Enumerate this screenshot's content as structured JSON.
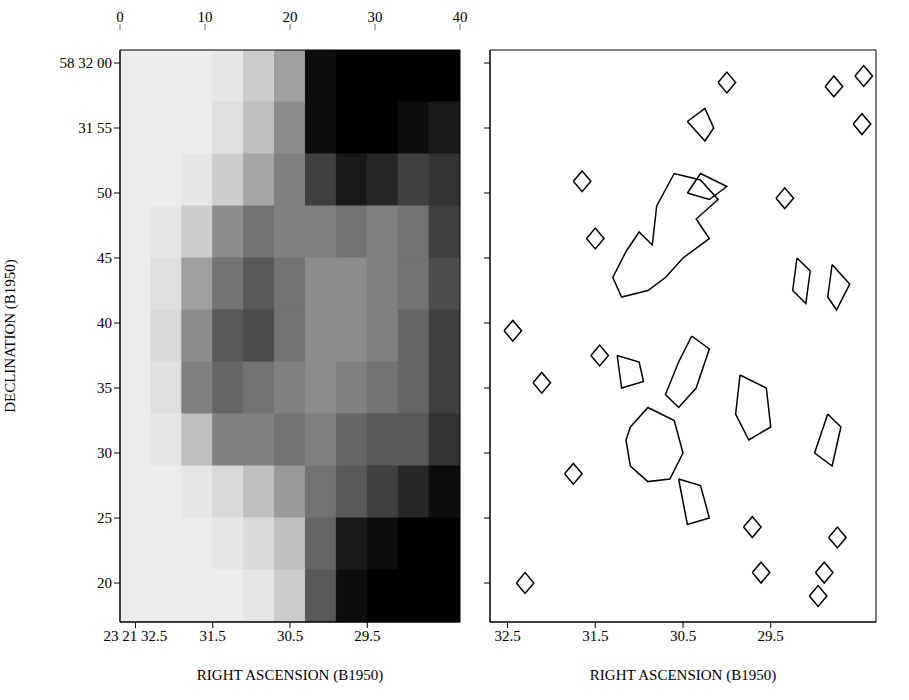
{
  "chart_data": [
    {
      "type": "heatmap",
      "xlabel": "RIGHT ASCENSION (B1950)",
      "ylabel": "DECLINATION (B1950)",
      "xlim": [
        32.7,
        28.3
      ],
      "ylim": [
        17,
        61
      ],
      "xticks": [
        {
          "value": 32.5,
          "label": "23 21 32.5"
        },
        31.5,
        30.5,
        29.5
      ],
      "yticks": [
        {
          "value": 60,
          "label": "58 32 00"
        },
        {
          "value": 55,
          "label": "31 55"
        },
        50,
        45,
        40,
        35,
        30,
        25,
        20
      ],
      "x_edges": [
        32.7,
        32.3,
        31.9,
        31.5,
        31.1,
        30.7,
        30.3,
        29.9,
        29.5,
        29.1,
        28.7,
        28.3
      ],
      "y_edges": [
        61,
        57,
        53,
        49,
        45,
        41,
        37,
        33,
        29,
        25,
        21,
        17
      ],
      "cells": [
        [
          3,
          3,
          3,
          4,
          8,
          15,
          38,
          40,
          40,
          40,
          40
        ],
        [
          3,
          3,
          3,
          5,
          10,
          18,
          38,
          40,
          40,
          38,
          36
        ],
        [
          3,
          3,
          4,
          8,
          14,
          20,
          30,
          36,
          34,
          30,
          32
        ],
        [
          3,
          4,
          8,
          18,
          22,
          20,
          20,
          22,
          20,
          22,
          30
        ],
        [
          3,
          5,
          15,
          22,
          26,
          22,
          18,
          18,
          20,
          22,
          28
        ],
        [
          3,
          6,
          18,
          26,
          28,
          22,
          18,
          18,
          20,
          24,
          30
        ],
        [
          3,
          5,
          20,
          24,
          22,
          20,
          18,
          20,
          22,
          24,
          30
        ],
        [
          3,
          4,
          10,
          20,
          20,
          22,
          20,
          24,
          26,
          26,
          32
        ],
        [
          3,
          3,
          4,
          6,
          10,
          16,
          22,
          26,
          30,
          34,
          38
        ],
        [
          3,
          3,
          3,
          4,
          6,
          10,
          24,
          36,
          38,
          40,
          40
        ],
        [
          3,
          3,
          3,
          3,
          4,
          8,
          26,
          38,
          40,
          40,
          40
        ]
      ],
      "colorbar": {
        "range": [
          0,
          40
        ],
        "ticks": [
          0,
          10,
          20,
          30,
          40
        ]
      }
    },
    {
      "type": "contour",
      "xlabel": "RIGHT ASCENSION (B1950)",
      "xlim": [
        32.7,
        28.3
      ],
      "ylim": [
        17,
        61
      ],
      "xticks": [
        32.5,
        31.5,
        30.5,
        29.5
      ],
      "yticks": [
        60,
        55,
        50,
        45,
        40,
        35,
        30,
        25,
        20
      ],
      "tick_labels": "x",
      "color": "#000000",
      "contours": [
        [
          [
            31.15,
            45.5
          ],
          [
            31.0,
            47
          ],
          [
            30.85,
            46
          ],
          [
            30.8,
            49
          ],
          [
            30.6,
            51.5
          ],
          [
            30.3,
            51
          ],
          [
            30.1,
            49.5
          ],
          [
            30.35,
            48
          ],
          [
            30.2,
            46.5
          ],
          [
            30.5,
            45
          ],
          [
            30.7,
            43.5
          ],
          [
            30.9,
            42.5
          ],
          [
            31.2,
            42
          ],
          [
            31.3,
            43.5
          ],
          [
            31.15,
            45.5
          ]
        ],
        [
          [
            31.1,
            32
          ],
          [
            30.9,
            33.5
          ],
          [
            30.6,
            32.5
          ],
          [
            30.5,
            30
          ],
          [
            30.65,
            28
          ],
          [
            30.9,
            27.8
          ],
          [
            31.1,
            29
          ],
          [
            31.15,
            31
          ],
          [
            31.1,
            32
          ]
        ],
        [
          [
            30.4,
            39
          ],
          [
            30.2,
            38
          ],
          [
            30.35,
            35
          ],
          [
            30.55,
            33.5
          ],
          [
            30.7,
            34.5
          ],
          [
            30.55,
            37
          ],
          [
            30.4,
            39
          ]
        ],
        [
          [
            29.85,
            36
          ],
          [
            29.55,
            35
          ],
          [
            29.5,
            32
          ],
          [
            29.75,
            31
          ],
          [
            29.9,
            33
          ],
          [
            29.85,
            36
          ]
        ],
        [
          [
            30.45,
            50
          ],
          [
            30.2,
            49.5
          ],
          [
            30.0,
            50.5
          ],
          [
            30.3,
            51.5
          ],
          [
            30.45,
            50
          ]
        ],
        [
          [
            30.45,
            55.5
          ],
          [
            30.25,
            54
          ],
          [
            30.15,
            55
          ],
          [
            30.25,
            56.5
          ],
          [
            30.45,
            55.5
          ]
        ],
        [
          [
            31.25,
            37.5
          ],
          [
            31.0,
            37
          ],
          [
            30.95,
            35.5
          ],
          [
            31.2,
            35
          ],
          [
            31.25,
            37.5
          ]
        ],
        [
          [
            30.55,
            28
          ],
          [
            30.3,
            27.5
          ],
          [
            30.2,
            25
          ],
          [
            30.45,
            24.5
          ],
          [
            30.55,
            28
          ]
        ],
        [
          [
            28.85,
            33
          ],
          [
            28.7,
            32
          ],
          [
            28.8,
            29
          ],
          [
            29.0,
            30
          ],
          [
            28.85,
            33
          ]
        ],
        [
          [
            29.2,
            45
          ],
          [
            29.05,
            44
          ],
          [
            29.1,
            41.5
          ],
          [
            29.25,
            42.5
          ],
          [
            29.2,
            45
          ]
        ],
        [
          [
            28.8,
            44.5
          ],
          [
            28.6,
            43
          ],
          [
            28.75,
            41
          ],
          [
            28.85,
            42
          ],
          [
            28.8,
            44.5
          ]
        ],
        [
          [
            31.75,
            50.9
          ],
          [
            31.65,
            51.7
          ],
          [
            31.55,
            50.9
          ],
          [
            31.65,
            50.1
          ],
          [
            31.75,
            50.9
          ]
        ],
        [
          [
            31.6,
            46.5
          ],
          [
            31.5,
            47.3
          ],
          [
            31.4,
            46.5
          ],
          [
            31.5,
            45.7
          ],
          [
            31.6,
            46.5
          ]
        ],
        [
          [
            31.55,
            37.5
          ],
          [
            31.45,
            38.3
          ],
          [
            31.35,
            37.5
          ],
          [
            31.45,
            36.7
          ],
          [
            31.55,
            37.5
          ]
        ],
        [
          [
            32.21,
            35.4
          ],
          [
            32.11,
            36.2
          ],
          [
            32.01,
            35.4
          ],
          [
            32.11,
            34.6
          ],
          [
            32.21,
            35.4
          ]
        ],
        [
          [
            31.85,
            28.4
          ],
          [
            31.75,
            29.2
          ],
          [
            31.65,
            28.4
          ],
          [
            31.75,
            27.6
          ],
          [
            31.85,
            28.4
          ]
        ],
        [
          [
            29.81,
            24.3
          ],
          [
            29.71,
            25.1
          ],
          [
            29.61,
            24.3
          ],
          [
            29.71,
            23.5
          ],
          [
            29.81,
            24.3
          ]
        ],
        [
          [
            29.71,
            20.8
          ],
          [
            29.61,
            21.6
          ],
          [
            29.51,
            20.8
          ],
          [
            29.61,
            20.0
          ],
          [
            29.71,
            20.8
          ]
        ],
        [
          [
            28.99,
            20.8
          ],
          [
            28.89,
            21.6
          ],
          [
            28.79,
            20.8
          ],
          [
            28.89,
            20.0
          ],
          [
            28.99,
            20.8
          ]
        ],
        [
          [
            28.84,
            23.5
          ],
          [
            28.74,
            24.3
          ],
          [
            28.64,
            23.5
          ],
          [
            28.74,
            22.7
          ],
          [
            28.84,
            23.5
          ]
        ],
        [
          [
            29.44,
            49.6
          ],
          [
            29.34,
            50.4
          ],
          [
            29.24,
            49.6
          ],
          [
            29.34,
            48.8
          ],
          [
            29.44,
            49.6
          ]
        ],
        [
          [
            28.88,
            58.2
          ],
          [
            28.78,
            59.0
          ],
          [
            28.68,
            58.2
          ],
          [
            28.78,
            57.4
          ],
          [
            28.88,
            58.2
          ]
        ],
        [
          [
            28.54,
            59.0
          ],
          [
            28.44,
            59.8
          ],
          [
            28.34,
            59.0
          ],
          [
            28.44,
            58.2
          ],
          [
            28.54,
            59.0
          ]
        ],
        [
          [
            28.56,
            55.3
          ],
          [
            28.46,
            56.1
          ],
          [
            28.36,
            55.3
          ],
          [
            28.46,
            54.5
          ],
          [
            28.56,
            55.3
          ]
        ],
        [
          [
            32.54,
            39.4
          ],
          [
            32.44,
            40.2
          ],
          [
            32.34,
            39.4
          ],
          [
            32.44,
            38.6
          ],
          [
            32.54,
            39.4
          ]
        ],
        [
          [
            29.06,
            19.0
          ],
          [
            28.96,
            19.8
          ],
          [
            28.86,
            19.0
          ],
          [
            28.96,
            18.2
          ],
          [
            29.06,
            19.0
          ]
        ],
        [
          [
            30.1,
            58.5
          ],
          [
            30.0,
            59.3
          ],
          [
            29.9,
            58.5
          ],
          [
            30.0,
            57.7
          ],
          [
            30.1,
            58.5
          ]
        ],
        [
          [
            32.4,
            20.0
          ],
          [
            32.3,
            20.8
          ],
          [
            32.2,
            20.0
          ],
          [
            32.3,
            19.2
          ],
          [
            32.4,
            20.0
          ]
        ]
      ]
    }
  ]
}
